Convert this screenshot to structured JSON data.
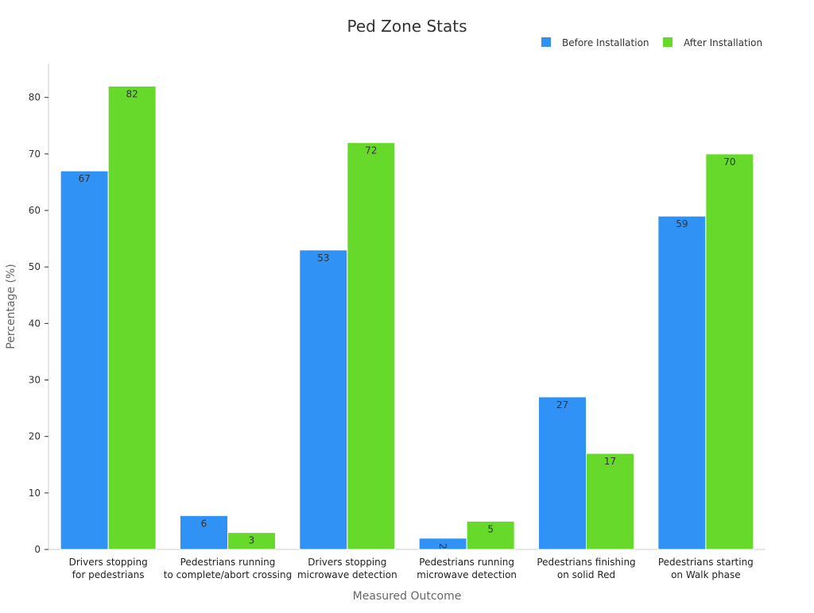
{
  "chart_data": {
    "type": "bar",
    "title": "Ped Zone Stats",
    "xlabel": "Measured Outcome",
    "ylabel": "Percentage (%)",
    "ylim": [
      0,
      86
    ],
    "yticks": [
      0,
      10,
      20,
      30,
      40,
      50,
      60,
      70,
      80
    ],
    "grid": false,
    "legend_position": "top-right",
    "categories": [
      [
        "Drivers stopping",
        "for pedestrians"
      ],
      [
        "Pedestrians running",
        "to complete/abort crossing"
      ],
      [
        "Drivers stopping",
        "microwave detection"
      ],
      [
        "Pedestrians running",
        "microwave detection"
      ],
      [
        "Pedestrians finishing",
        "on solid Red"
      ],
      [
        "Pedestrians starting",
        "on Walk phase"
      ]
    ],
    "series": [
      {
        "name": "Before Installation",
        "color": "#3092f5",
        "values": [
          67,
          6,
          53,
          2,
          27,
          59
        ]
      },
      {
        "name": "After Installation",
        "color": "#66d92a",
        "values": [
          82,
          3,
          72,
          5,
          17,
          70
        ]
      }
    ]
  }
}
